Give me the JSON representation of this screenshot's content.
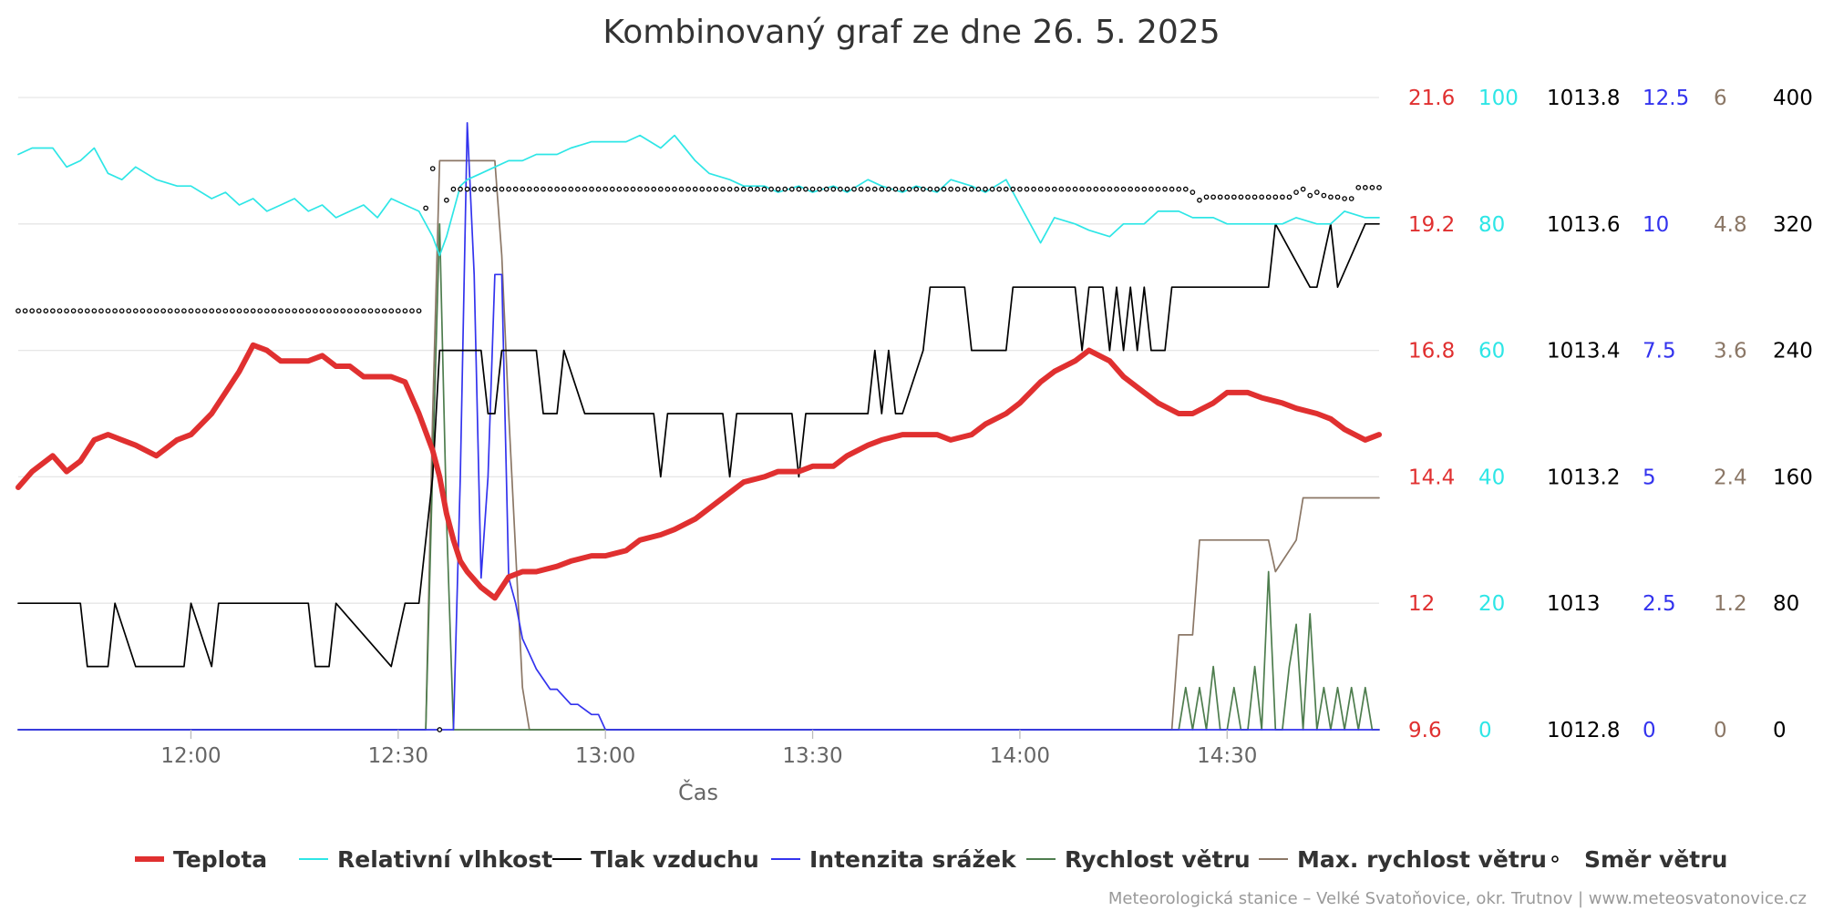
{
  "chart_data": {
    "type": "line",
    "title": "Kombinovaný graf ze dne 26. 5. 2025",
    "xlabel": "Čas",
    "x_ticks": [
      "12:00",
      "12:30",
      "13:00",
      "13:30",
      "14:00",
      "14:30"
    ],
    "x_range": [
      "11:35",
      "14:52"
    ],
    "grid": true,
    "legend_position": "bottom",
    "credits": "Meteorologická stanice – Velké Svatoňovice, okr. Trutnov | www.meteosvatonovice.cz",
    "axes": [
      {
        "id": "temp",
        "color": "#e03030",
        "ticks": [
          "9.6",
          "12",
          "14.4",
          "16.8",
          "19.2",
          "21.6"
        ],
        "range": [
          9.6,
          21.6
        ]
      },
      {
        "id": "hum",
        "color": "#2ee6e6",
        "ticks": [
          "0",
          "20",
          "40",
          "60",
          "80",
          "100"
        ],
        "range": [
          0,
          100
        ]
      },
      {
        "id": "press",
        "color": "#000000",
        "ticks": [
          "1012.8",
          "1013",
          "1013.2",
          "1013.4",
          "1013.6",
          "1013.8"
        ],
        "range": [
          1012.8,
          1013.8
        ]
      },
      {
        "id": "rain",
        "color": "#3333ee",
        "ticks": [
          "0",
          "2.5",
          "5",
          "7.5",
          "10",
          "12.5"
        ],
        "range": [
          0,
          12.5
        ]
      },
      {
        "id": "gust",
        "color": "#8b7766",
        "ticks": [
          "0",
          "1.2",
          "2.4",
          "3.6",
          "4.8",
          "6"
        ],
        "range": [
          0,
          6
        ]
      },
      {
        "id": "dir",
        "color": "#000000",
        "ticks": [
          "0",
          "80",
          "160",
          "240",
          "320",
          "400"
        ],
        "range": [
          0,
          400
        ]
      }
    ],
    "series": [
      {
        "name": "Teplota",
        "axis": "temp",
        "color": "#e03030",
        "style": "thick-line",
        "x": [
          "11:35",
          "11:37",
          "11:40",
          "11:42",
          "11:44",
          "11:46",
          "11:48",
          "11:50",
          "11:52",
          "11:55",
          "11:58",
          "12:00",
          "12:03",
          "12:05",
          "12:07",
          "12:09",
          "12:11",
          "12:13",
          "12:15",
          "12:17",
          "12:19",
          "12:21",
          "12:23",
          "12:25",
          "12:27",
          "12:29",
          "12:31",
          "12:33",
          "12:35",
          "12:36",
          "12:37",
          "12:38",
          "12:39",
          "12:40",
          "12:42",
          "12:44",
          "12:45",
          "12:46",
          "12:48",
          "12:50",
          "12:53",
          "12:55",
          "12:58",
          "13:00",
          "13:03",
          "13:05",
          "13:08",
          "13:10",
          "13:13",
          "13:15",
          "13:18",
          "13:20",
          "13:23",
          "13:25",
          "13:28",
          "13:30",
          "13:33",
          "13:35",
          "13:38",
          "13:40",
          "13:43",
          "13:45",
          "13:48",
          "13:50",
          "13:53",
          "13:55",
          "13:58",
          "14:00",
          "14:03",
          "14:05",
          "14:08",
          "14:10",
          "14:13",
          "14:15",
          "14:18",
          "14:20",
          "14:23",
          "14:25",
          "14:28",
          "14:30",
          "14:33",
          "14:35",
          "14:38",
          "14:40",
          "14:43",
          "14:45",
          "14:47",
          "14:50",
          "14:52"
        ],
        "values": [
          14.2,
          14.5,
          14.8,
          14.5,
          14.7,
          15.1,
          15.2,
          15.1,
          15.0,
          14.8,
          15.1,
          15.2,
          15.6,
          16.0,
          16.4,
          16.9,
          16.8,
          16.6,
          16.6,
          16.6,
          16.7,
          16.5,
          16.5,
          16.3,
          16.3,
          16.3,
          16.2,
          15.6,
          14.9,
          14.4,
          13.7,
          13.2,
          12.8,
          12.6,
          12.3,
          12.1,
          12.3,
          12.5,
          12.6,
          12.6,
          12.7,
          12.8,
          12.9,
          12.9,
          13.0,
          13.2,
          13.3,
          13.4,
          13.6,
          13.8,
          14.1,
          14.3,
          14.4,
          14.5,
          14.5,
          14.6,
          14.6,
          14.8,
          15.0,
          15.1,
          15.2,
          15.2,
          15.2,
          15.1,
          15.2,
          15.4,
          15.6,
          15.8,
          16.2,
          16.4,
          16.6,
          16.8,
          16.6,
          16.3,
          16.0,
          15.8,
          15.6,
          15.6,
          15.8,
          16.0,
          16.0,
          15.9,
          15.8,
          15.7,
          15.6,
          15.5,
          15.3,
          15.1,
          15.2
        ]
      },
      {
        "name": "Relativní vlhkost",
        "axis": "hum",
        "color": "#2ee6e6",
        "style": "line",
        "x": [
          "11:35",
          "11:37",
          "11:40",
          "11:42",
          "11:44",
          "11:46",
          "11:48",
          "11:50",
          "11:52",
          "11:55",
          "11:58",
          "12:00",
          "12:03",
          "12:05",
          "12:07",
          "12:09",
          "12:11",
          "12:13",
          "12:15",
          "12:17",
          "12:19",
          "12:21",
          "12:23",
          "12:25",
          "12:27",
          "12:29",
          "12:31",
          "12:33",
          "12:35",
          "12:36",
          "12:37",
          "12:38",
          "12:39",
          "12:40",
          "12:42",
          "12:44",
          "12:46",
          "12:48",
          "12:50",
          "12:53",
          "12:55",
          "12:58",
          "13:00",
          "13:03",
          "13:05",
          "13:08",
          "13:10",
          "13:13",
          "13:15",
          "13:18",
          "13:20",
          "13:23",
          "13:25",
          "13:28",
          "13:30",
          "13:33",
          "13:35",
          "13:38",
          "13:40",
          "13:43",
          "13:45",
          "13:48",
          "13:50",
          "13:53",
          "13:55",
          "13:58",
          "14:00",
          "14:03",
          "14:05",
          "14:08",
          "14:10",
          "14:13",
          "14:15",
          "14:18",
          "14:20",
          "14:23",
          "14:25",
          "14:28",
          "14:30",
          "14:33",
          "14:35",
          "14:38",
          "14:40",
          "14:43",
          "14:45",
          "14:47",
          "14:50",
          "14:52"
        ],
        "values": [
          91,
          92,
          92,
          89,
          90,
          92,
          88,
          87,
          89,
          87,
          86,
          86,
          84,
          85,
          83,
          84,
          82,
          83,
          84,
          82,
          83,
          81,
          82,
          83,
          81,
          84,
          83,
          82,
          78,
          75,
          78,
          82,
          86,
          87,
          88,
          89,
          90,
          90,
          91,
          91,
          92,
          93,
          93,
          93,
          94,
          92,
          94,
          90,
          88,
          87,
          86,
          86,
          85,
          86,
          85,
          86,
          85,
          87,
          86,
          85,
          86,
          85,
          87,
          86,
          85,
          87,
          83,
          77,
          81,
          80,
          79,
          78,
          80,
          80,
          82,
          82,
          81,
          81,
          80,
          80,
          80,
          80,
          81,
          80,
          80,
          82,
          81,
          81
        ]
      },
      {
        "name": "Tlak vzduchu",
        "axis": "press",
        "color": "#000000",
        "style": "line",
        "x": [
          "11:35",
          "11:44",
          "11:45",
          "11:48",
          "11:49",
          "11:52",
          "11:59",
          "12:00",
          "12:03",
          "12:04",
          "12:07",
          "12:10",
          "12:17",
          "12:18",
          "12:20",
          "12:21",
          "12:29",
          "12:31",
          "12:33",
          "12:35",
          "12:36",
          "12:40",
          "12:42",
          "12:43",
          "12:44",
          "12:45",
          "12:50",
          "12:51",
          "12:53",
          "12:54",
          "12:57",
          "13:01",
          "13:07",
          "13:08",
          "13:09",
          "13:17",
          "13:18",
          "13:19",
          "13:27",
          "13:28",
          "13:29",
          "13:31",
          "13:32",
          "13:38",
          "13:39",
          "13:40",
          "13:41",
          "13:42",
          "13:43",
          "13:46",
          "13:47",
          "13:52",
          "13:53",
          "13:58",
          "13:59",
          "14:02",
          "14:08",
          "14:09",
          "14:10",
          "14:12",
          "14:13",
          "14:14",
          "14:15",
          "14:16",
          "14:17",
          "14:18",
          "14:19",
          "14:21",
          "14:22",
          "14:23",
          "14:36",
          "14:37",
          "14:42",
          "14:43",
          "14:45",
          "14:46",
          "14:50",
          "14:52"
        ],
        "values": [
          1013,
          1013,
          1012.9,
          1012.9,
          1013,
          1012.9,
          1012.9,
          1013,
          1012.9,
          1013,
          1013,
          1013,
          1013,
          1012.9,
          1012.9,
          1013,
          1012.9,
          1013,
          1013,
          1013.2,
          1013.4,
          1013.4,
          1013.4,
          1013.3,
          1013.3,
          1013.4,
          1013.4,
          1013.3,
          1013.3,
          1013.4,
          1013.3,
          1013.3,
          1013.3,
          1013.2,
          1013.3,
          1013.3,
          1013.2,
          1013.3,
          1013.3,
          1013.2,
          1013.3,
          1013.3,
          1013.3,
          1013.3,
          1013.4,
          1013.3,
          1013.4,
          1013.3,
          1013.3,
          1013.4,
          1013.5,
          1013.5,
          1013.4,
          1013.4,
          1013.5,
          1013.5,
          1013.5,
          1013.4,
          1013.5,
          1013.5,
          1013.4,
          1013.5,
          1013.4,
          1013.5,
          1013.4,
          1013.5,
          1013.4,
          1013.4,
          1013.5,
          1013.5,
          1013.5,
          1013.6,
          1013.5,
          1013.5,
          1013.6,
          1013.5,
          1013.6,
          1013.6
        ]
      },
      {
        "name": "Intenzita srážek",
        "axis": "rain",
        "color": "#3333ee",
        "style": "line",
        "x": [
          "11:35",
          "12:36",
          "12:37",
          "12:38",
          "12:39",
          "12:40",
          "12:41",
          "12:42",
          "12:43",
          "12:44",
          "12:45",
          "12:46",
          "12:47",
          "12:48",
          "12:49",
          "12:50",
          "12:51",
          "12:52",
          "12:53",
          "12:55",
          "12:56",
          "12:58",
          "12:59",
          "13:00",
          "14:52"
        ],
        "values": [
          0,
          0,
          0,
          0,
          5,
          12,
          9,
          3,
          5,
          9,
          9,
          3,
          2.5,
          1.8,
          1.5,
          1.2,
          1,
          0.8,
          0.8,
          0.5,
          0.5,
          0.3,
          0.3,
          0,
          0
        ]
      },
      {
        "name": "Rychlost větru",
        "axis": "gust",
        "color": "#4e7d4e",
        "style": "line",
        "x": [
          "11:35",
          "12:34",
          "12:35",
          "12:36",
          "12:37",
          "12:38",
          "14:23",
          "14:24",
          "14:25",
          "14:26",
          "14:27",
          "14:28",
          "14:29",
          "14:30",
          "14:31",
          "14:32",
          "14:33",
          "14:34",
          "14:35",
          "14:36",
          "14:37",
          "14:38",
          "14:39",
          "14:40",
          "14:41",
          "14:42",
          "14:43",
          "14:44",
          "14:45",
          "14:46",
          "14:47",
          "14:48",
          "14:49",
          "14:50",
          "14:51",
          "14:52"
        ],
        "values": [
          0,
          0,
          2.5,
          4.8,
          2,
          0,
          0,
          0.4,
          0,
          0.4,
          0,
          0.6,
          0,
          0,
          0.4,
          0,
          0,
          0.6,
          0,
          1.5,
          0,
          0,
          0.6,
          1,
          0,
          1.1,
          0,
          0.4,
          0,
          0.4,
          0,
          0.4,
          0,
          0.4,
          0,
          0
        ]
      },
      {
        "name": "Max. rychlost větru",
        "axis": "gust",
        "color": "#8b7766",
        "style": "line",
        "x": [
          "11:35",
          "12:34",
          "12:35",
          "12:36",
          "12:44",
          "12:45",
          "12:46",
          "12:48",
          "12:49",
          "14:22",
          "14:23",
          "14:25",
          "14:26",
          "14:36",
          "14:37",
          "14:40",
          "14:41",
          "14:52"
        ],
        "values": [
          0,
          0,
          3,
          5.4,
          5.4,
          4.5,
          3,
          0.4,
          0,
          0,
          0.9,
          0.9,
          1.8,
          1.8,
          1.5,
          1.8,
          2.2,
          2.2
        ]
      },
      {
        "name": "Směr větru",
        "axis": "dir",
        "color": "#000000",
        "style": "dots",
        "x": [
          "11:35",
          "12:33",
          "12:34",
          "12:35",
          "12:36",
          "12:37",
          "12:38",
          "14:24",
          "14:25",
          "14:26",
          "14:27",
          "14:28",
          "14:29",
          "14:30",
          "14:31",
          "14:40",
          "14:41",
          "14:42",
          "14:43",
          "14:44",
          "14:45",
          "14:46",
          "14:47",
          "14:48",
          "14:49",
          "14:50",
          "14:51",
          "14:52"
        ],
        "values": [
          265,
          265,
          330,
          355,
          0,
          335,
          342,
          342,
          340,
          335,
          337,
          337,
          337,
          337,
          337,
          340,
          342,
          338,
          340,
          338,
          337,
          337,
          336,
          336,
          343,
          343,
          343,
          343
        ]
      }
    ]
  }
}
